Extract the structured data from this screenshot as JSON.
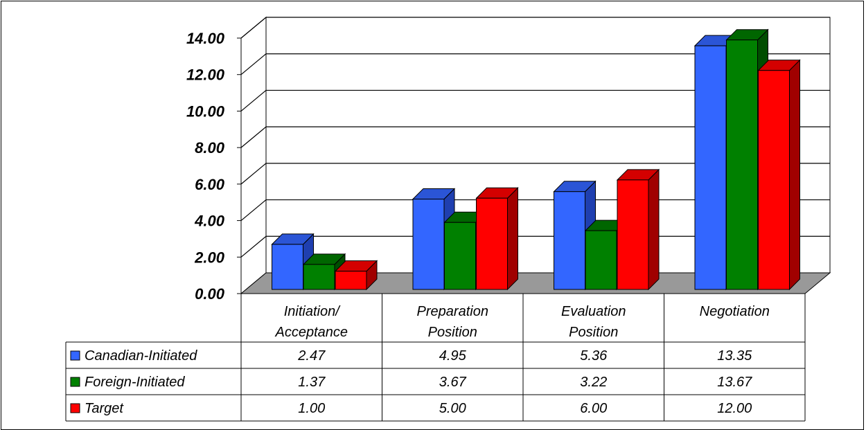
{
  "chart_data": {
    "type": "bar",
    "categories": [
      [
        "Initiation/",
        "Acceptance"
      ],
      [
        "Preparation",
        "Position"
      ],
      [
        "Evaluation",
        "Position"
      ],
      [
        "Negotiation"
      ]
    ],
    "series": [
      {
        "name": "Canadian-Initiated",
        "color": "#3366ff",
        "side": "#1f3fb0",
        "top": "#2b55d6",
        "values": [
          2.47,
          4.95,
          5.36,
          13.35
        ],
        "labels": [
          "2.47",
          "4.95",
          "5.36",
          "13.35"
        ]
      },
      {
        "name": "Foreign-Initiated",
        "color": "#008000",
        "side": "#004d00",
        "top": "#006600",
        "values": [
          1.37,
          3.67,
          3.22,
          13.67
        ],
        "labels": [
          "1.37",
          "3.67",
          "3.22",
          "13.67"
        ]
      },
      {
        "name": "Target",
        "color": "#ff0000",
        "side": "#a00000",
        "top": "#d40000",
        "values": [
          1.0,
          5.0,
          6.0,
          12.0
        ],
        "labels": [
          "1.00",
          "5.00",
          "6.00",
          "12.00"
        ]
      }
    ],
    "yticks": [
      "0.00",
      "2.00",
      "4.00",
      "6.00",
      "8.00",
      "10.00",
      "12.00",
      "14.00"
    ],
    "ylim": [
      0,
      14
    ],
    "grid": true,
    "legend": "data-table",
    "floor_color": "#999999"
  }
}
